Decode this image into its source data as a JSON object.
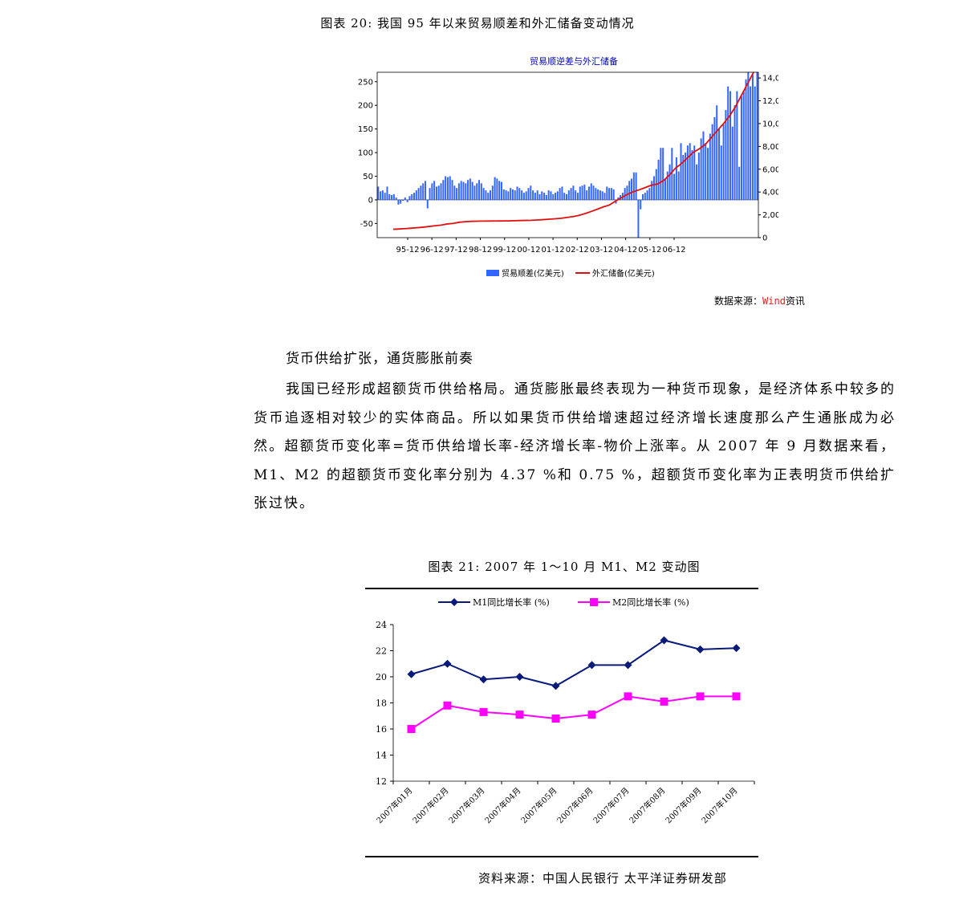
{
  "figure20": {
    "caption": "图表 20: 我国 95 年以来贸易顺差和外汇储备变动情况",
    "source_label": "数据来源：",
    "source_wind": "Wind",
    "source_tail": "资讯",
    "chart_data": {
      "type": "bar",
      "title": "贸易顺逆差与外汇储备",
      "x_tick_labels": [
        "95-12",
        "96-12",
        "97-12",
        "98-12",
        "99-12",
        "00-12",
        "01-12",
        "02-12",
        "03-12",
        "04-12",
        "05-12",
        "06-12"
      ],
      "left_axis": {
        "ticks": [
          "-50",
          "0",
          "50",
          "100",
          "150",
          "200",
          "250"
        ],
        "range": [
          -80,
          270
        ]
      },
      "right_axis": {
        "ticks": [
          "0",
          "2,000",
          "4,000",
          "6,000",
          "8,000",
          "10,000",
          "12,000",
          "14,000"
        ],
        "range": [
          0,
          14500
        ]
      },
      "series": [
        {
          "name": "贸易顺差(亿美元)",
          "kind": "bar",
          "axis": "left",
          "color": "#3366ff",
          "values": [
            28,
            18,
            20,
            15,
            28,
            12,
            10,
            12,
            5,
            -10,
            -8,
            -2,
            5,
            -5,
            8,
            12,
            15,
            20,
            25,
            30,
            35,
            40,
            -18,
            25,
            35,
            40,
            28,
            30,
            35,
            42,
            50,
            48,
            50,
            42,
            30,
            25,
            35,
            40,
            38,
            35,
            42,
            45,
            38,
            30,
            35,
            42,
            35,
            25,
            20,
            15,
            20,
            30,
            48,
            45,
            40,
            38,
            22,
            20,
            18,
            25,
            22,
            20,
            28,
            25,
            20,
            15,
            18,
            25,
            30,
            20,
            15,
            20,
            12,
            18,
            15,
            10,
            20,
            18,
            12,
            15,
            18,
            25,
            28,
            15,
            12,
            20,
            25,
            30,
            20,
            15,
            28,
            30,
            32,
            20,
            28,
            35,
            30,
            25,
            22,
            20,
            18,
            15,
            28,
            25,
            25,
            22,
            -8,
            5,
            10,
            15,
            25,
            30,
            40,
            45,
            58,
            58,
            -80,
            -20,
            12,
            15,
            20,
            25,
            40,
            50,
            65,
            85,
            110,
            110,
            45,
            60,
            75,
            110,
            55,
            90,
            60,
            120,
            95,
            100,
            115,
            120,
            105,
            115,
            75,
            100,
            130,
            145,
            120,
            110,
            140,
            160,
            175,
            200,
            150,
            115,
            160,
            190,
            240,
            230,
            155,
            200,
            230,
            70,
            220,
            230,
            255,
            270,
            240,
            265,
            240,
            270
          ]
        },
        {
          "name": "外汇储备(亿美元)",
          "kind": "line",
          "axis": "right",
          "color": "#e01010",
          "values": [
            736,
            760,
            790,
            830,
            870,
            920,
            980,
            1050,
            1100,
            1200,
            1250,
            1350,
            1399,
            1430,
            1445,
            1450,
            1455,
            1460,
            1465,
            1470,
            1480,
            1500,
            1510,
            1520,
            1547,
            1580,
            1620,
            1656,
            1700,
            1780,
            1850,
            1960,
            2122,
            2300,
            2500,
            2700,
            2864,
            3200,
            3500,
            3800,
            4033,
            4200,
            4400,
            4600,
            4700,
            5000,
            5500,
            6099,
            6500,
            7000,
            7500,
            7800,
            8189,
            8800,
            9400,
            10000,
            10663,
            11500,
            12500,
            13500,
            14500
          ]
        }
      ]
    },
    "legend": [
      "贸易顺差(亿美元)",
      "外汇储备(亿美元)"
    ]
  },
  "section_heading": "货币供给扩张，通货膨胀前奏",
  "paragraph": "我国已经形成超额货币供给格局。通货膨胀最终表现为一种货币现象，是经济体系中较多的货币追逐相对较少的实体商品。所以如果货币供给增速超过经济增长速度那么产生通胀成为必然。超额货币变化率=货币供给增长率-经济增长率-物价上涨率。从 2007 年 9 月数据来看，M1、M2 的超额货币变化率分别为 4.37 %和 0.75 %，超额货币变化率为正表明货币供给扩张过快。",
  "figure21": {
    "caption": "图表 21: 2007 年 1～10 月 M1、M2 变动图",
    "source": "资料来源：中国人民银行   太平洋证券研发部",
    "chart_data": {
      "type": "line",
      "categories": [
        "2007年01月",
        "2007年02月",
        "2007年03月",
        "2007年04月",
        "2007年05月",
        "2007年06月",
        "2007年07月",
        "2007年08月",
        "2007年09月",
        "2007年10月"
      ],
      "ylim": [
        12,
        24
      ],
      "y_ticks": [
        "12",
        "14",
        "16",
        "18",
        "20",
        "22",
        "24"
      ],
      "series": [
        {
          "name": "M1同比增长率 (%)",
          "color": "#0a1a7a",
          "marker": "diamond",
          "values": [
            20.2,
            21.0,
            19.8,
            20.0,
            19.3,
            20.9,
            20.9,
            22.8,
            22.1,
            22.2
          ]
        },
        {
          "name": "M2同比增长率 (%)",
          "color": "#ff00ff",
          "marker": "square",
          "values": [
            16.0,
            17.8,
            17.3,
            17.1,
            16.8,
            17.1,
            18.5,
            18.1,
            18.5,
            18.5
          ]
        }
      ]
    }
  }
}
